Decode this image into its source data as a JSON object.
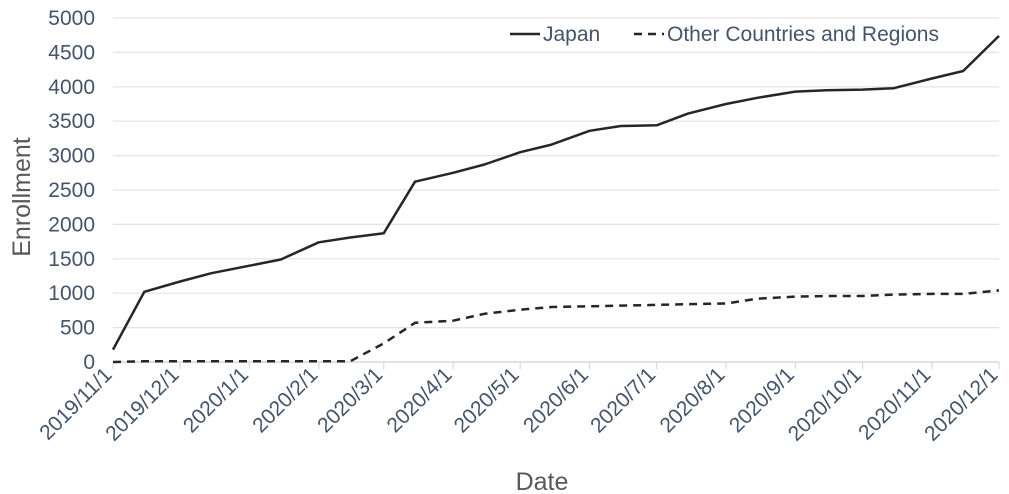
{
  "chart_data": {
    "type": "line",
    "title": "",
    "xlabel": "Date",
    "ylabel": "Enrollment",
    "ylim": [
      0,
      5000
    ],
    "yticks": [
      "0",
      "500",
      "1000",
      "1500",
      "2000",
      "2500",
      "3000",
      "3500",
      "4000",
      "4500",
      "5000"
    ],
    "ytick_values": [
      0,
      500,
      1000,
      1500,
      2000,
      2500,
      3000,
      3500,
      4000,
      4500,
      5000
    ],
    "x_range": [
      "2019-11-01",
      "2020-12-01"
    ],
    "xtick_labels": [
      "2019/11/1",
      "2019/12/1",
      "2020/1/1",
      "2020/2/1",
      "2020/3/1",
      "2020/4/1",
      "2020/5/1",
      "2020/6/1",
      "2020/7/1",
      "2020/8/1",
      "2020/9/1",
      "2020/10/1",
      "2020/11/1",
      "2020/12/1"
    ],
    "xtick_dates": [
      "2019-11-01",
      "2019-12-01",
      "2020-01-01",
      "2020-02-01",
      "2020-03-01",
      "2020-04-01",
      "2020-05-01",
      "2020-06-01",
      "2020-07-01",
      "2020-08-01",
      "2020-09-01",
      "2020-10-01",
      "2020-11-01",
      "2020-12-01"
    ],
    "grid": true,
    "legend_position": "top-right",
    "series": [
      {
        "name": "Japan",
        "style": "solid",
        "color": "#262626",
        "x": [
          "2019-11-01",
          "2019-11-15",
          "2019-12-01",
          "2019-12-15",
          "2020-01-01",
          "2020-01-15",
          "2020-02-01",
          "2020-02-15",
          "2020-03-01",
          "2020-03-15",
          "2020-04-01",
          "2020-04-15",
          "2020-05-01",
          "2020-05-15",
          "2020-06-01",
          "2020-06-15",
          "2020-07-01",
          "2020-07-15",
          "2020-08-01",
          "2020-08-15",
          "2020-09-01",
          "2020-09-15",
          "2020-10-01",
          "2020-10-15",
          "2020-11-01",
          "2020-11-15",
          "2020-12-01"
        ],
        "y": [
          180,
          1020,
          1170,
          1290,
          1400,
          1490,
          1740,
          1810,
          1870,
          2620,
          2750,
          2870,
          3050,
          3160,
          3360,
          3430,
          3440,
          3610,
          3750,
          3840,
          3930,
          3950,
          3960,
          3980,
          4120,
          4230,
          4740
        ]
      },
      {
        "name": "Other Countries and Regions",
        "style": "dashed",
        "color": "#262626",
        "x": [
          "2019-11-01",
          "2019-11-15",
          "2019-12-01",
          "2019-12-15",
          "2020-01-01",
          "2020-01-15",
          "2020-02-01",
          "2020-02-15",
          "2020-03-01",
          "2020-03-15",
          "2020-04-01",
          "2020-04-15",
          "2020-05-01",
          "2020-05-15",
          "2020-06-01",
          "2020-06-15",
          "2020-07-01",
          "2020-07-15",
          "2020-08-01",
          "2020-08-15",
          "2020-09-01",
          "2020-09-15",
          "2020-10-01",
          "2020-10-15",
          "2020-11-01",
          "2020-11-15",
          "2020-12-01"
        ],
        "y": [
          0,
          10,
          10,
          10,
          10,
          10,
          10,
          10,
          270,
          570,
          600,
          700,
          760,
          800,
          810,
          820,
          830,
          840,
          850,
          920,
          950,
          960,
          960,
          980,
          990,
          990,
          1040
        ]
      }
    ]
  }
}
